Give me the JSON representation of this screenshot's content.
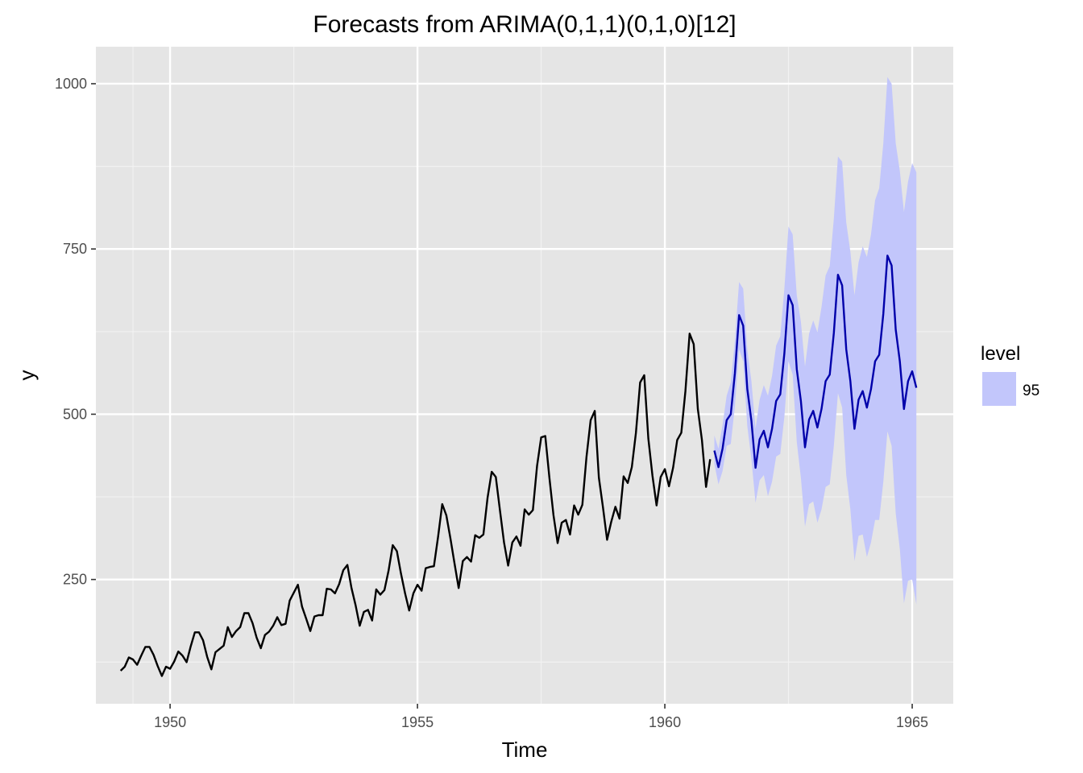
{
  "chart_data": {
    "type": "line",
    "title": "Forecasts from ARIMA(0,1,1)(0,1,0)[12]",
    "xlabel": "Time",
    "ylabel": "y",
    "xlim": [
      1948.5,
      1965.83
    ],
    "ylim": [
      62,
      1056
    ],
    "x_ticks": [
      1950,
      1955,
      1960,
      1965
    ],
    "x_tick_labels": [
      "1950",
      "1955",
      "1960",
      "1965"
    ],
    "y_ticks": [
      250,
      500,
      750,
      1000
    ],
    "y_tick_labels": [
      "250",
      "500",
      "750",
      "1000"
    ],
    "grid": true,
    "legend": {
      "title": "level",
      "items": [
        {
          "label": "95",
          "color": "#c2c6fb"
        }
      ],
      "placement": "right"
    },
    "colors": {
      "panel": "#e5e5e5",
      "grid_major": "#ffffff",
      "history": "#000000",
      "forecast": "#0000aa",
      "band": "#c2c6fb"
    },
    "history": {
      "start": 1949,
      "frequency": 12,
      "values": [
        112,
        118,
        132,
        129,
        121,
        135,
        148,
        148,
        136,
        119,
        104,
        118,
        115,
        126,
        141,
        135,
        125,
        149,
        170,
        170,
        158,
        133,
        114,
        140,
        145,
        150,
        178,
        163,
        172,
        178,
        199,
        199,
        184,
        162,
        146,
        166,
        171,
        180,
        193,
        181,
        183,
        218,
        230,
        242,
        209,
        191,
        172,
        194,
        196,
        196,
        236,
        235,
        229,
        243,
        264,
        272,
        237,
        211,
        180,
        201,
        204,
        188,
        235,
        227,
        234,
        264,
        302,
        293,
        259,
        229,
        203,
        229,
        242,
        233,
        267,
        269,
        270,
        315,
        364,
        347,
        312,
        274,
        237,
        278,
        284,
        277,
        317,
        313,
        318,
        374,
        413,
        405,
        355,
        306,
        271,
        306,
        315,
        301,
        356,
        348,
        355,
        422,
        465,
        467,
        404,
        347,
        305,
        336,
        340,
        318,
        362,
        348,
        363,
        435,
        491,
        505,
        404,
        359,
        310,
        337,
        360,
        342,
        406,
        396,
        420,
        472,
        548,
        559,
        463,
        407,
        362,
        405,
        417,
        391,
        419,
        461,
        472,
        535,
        622,
        606,
        508,
        461,
        390,
        432
      ]
    },
    "forecast": {
      "start": 1961,
      "frequency": 12,
      "mean": [
        445,
        420,
        448,
        491,
        500,
        562,
        650,
        634,
        538,
        490,
        419,
        462,
        475,
        450,
        478,
        520,
        530,
        592,
        680,
        665,
        568,
        520,
        450,
        492,
        505,
        480,
        508,
        550,
        560,
        623,
        711,
        695,
        598,
        550,
        478,
        522,
        535,
        510,
        538,
        580,
        590,
        652,
        740,
        725,
        628,
        580,
        508,
        550,
        565,
        540
      ],
      "lower": [
        425,
        394,
        414,
        452,
        455,
        512,
        598,
        580,
        482,
        432,
        366,
        400,
        408,
        376,
        398,
        436,
        440,
        496,
        580,
        560,
        458,
        404,
        330,
        364,
        368,
        336,
        356,
        390,
        394,
        452,
        532,
        510,
        408,
        356,
        278,
        316,
        318,
        284,
        306,
        340,
        340,
        398,
        474,
        452,
        350,
        296,
        214,
        248,
        250,
        212
      ],
      "upper": [
        468,
        448,
        484,
        528,
        548,
        612,
        700,
        690,
        598,
        550,
        478,
        522,
        544,
        528,
        558,
        604,
        618,
        690,
        784,
        772,
        680,
        640,
        572,
        622,
        642,
        624,
        662,
        710,
        724,
        796,
        890,
        882,
        790,
        746,
        680,
        730,
        754,
        738,
        772,
        824,
        842,
        910,
        1010,
        1000,
        910,
        868,
        806,
        852,
        880,
        866
      ]
    }
  }
}
